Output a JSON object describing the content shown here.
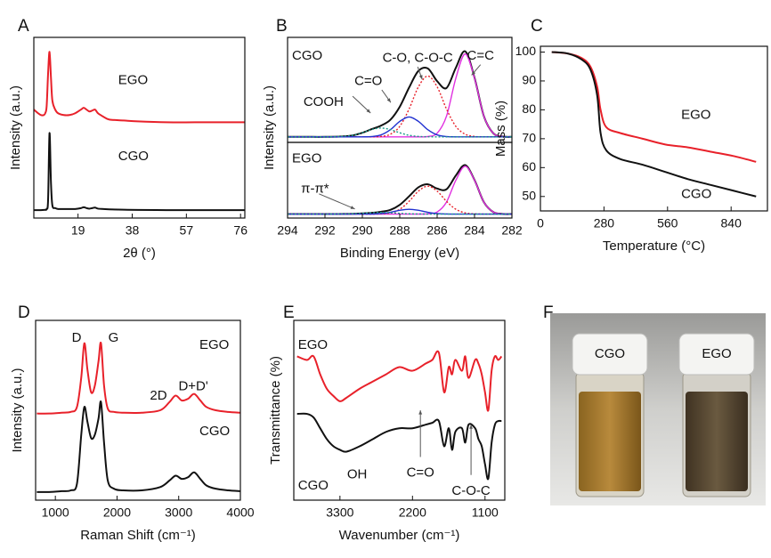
{
  "chart_data": [
    {
      "type": "line",
      "panel": "A",
      "xlabel": "2θ (°)",
      "ylabel": "Intensity (a.u.)",
      "xlim": [
        3.5,
        77.5
      ],
      "ylim": [
        0,
        100
      ],
      "xticks": [
        19,
        38,
        57,
        76
      ],
      "x": [
        3.5,
        5,
        6,
        7,
        7.5,
        8,
        8.5,
        9,
        9.5,
        10,
        11,
        12,
        14,
        16,
        18,
        20,
        21,
        22,
        23,
        24,
        25,
        26,
        28,
        30,
        35,
        40,
        50,
        60,
        70,
        77.5
      ],
      "series": [
        {
          "name": "EGO",
          "color": "#e8212a",
          "values": [
            60,
            58,
            57,
            57,
            58,
            62,
            80,
            92,
            78,
            65,
            60,
            58,
            57,
            57,
            58,
            60,
            61,
            60,
            59,
            59.5,
            60,
            58,
            56,
            54.5,
            54,
            53.5,
            53,
            53,
            53,
            53
          ]
        },
        {
          "name": "CGO",
          "color": "#111111",
          "values": [
            4.4,
            4.4,
            4.4,
            4.5,
            4.6,
            5,
            10,
            47,
            20,
            7,
            5.5,
            5,
            5,
            5,
            5,
            5.5,
            6,
            5.5,
            5.2,
            5.5,
            5.8,
            5.2,
            5,
            4.8,
            4.6,
            4.5,
            4.4,
            4.4,
            4.4,
            4.4
          ]
        }
      ]
    },
    {
      "type": "line",
      "panel": "B",
      "ylabel": "Intensity (a.u.)",
      "annotations": [
        "CGO"
      ],
      "xlim": [
        294,
        282
      ],
      "ylim": [
        -5,
        90
      ],
      "x": [
        294,
        293,
        292,
        291,
        290.5,
        290,
        289.5,
        289,
        288.5,
        288,
        287.5,
        287,
        286.5,
        286,
        285.5,
        285,
        284.5,
        284,
        283.5,
        283,
        282.5,
        282
      ],
      "series": [
        {
          "color": "#111111",
          "values": [
            0,
            0,
            0,
            0.4,
            1.4,
            3.7,
            7.0,
            10.2,
            15.5,
            27.2,
            44.6,
            59.7,
            61.9,
            50.4,
            44.2,
            62.5,
            77.4,
            53.4,
            18.7,
            3.3,
            0.3,
            0
          ]
        },
        {
          "name": "C=C",
          "color": "#e030e0",
          "values": [
            0,
            0,
            0,
            0,
            0,
            0,
            0,
            0,
            0,
            0,
            0,
            0,
            0.3,
            3.3,
            18.7,
            53,
            75,
            53,
            18.7,
            3.3,
            0.3,
            0
          ]
        },
        {
          "name": "C-O, C-O-C",
          "color": "#e8212a",
          "dash": true,
          "values": [
            0,
            0,
            0,
            0,
            0,
            0,
            0.05,
            0.4,
            2.4,
            9.5,
            25.2,
            45.3,
            55,
            45.3,
            25.2,
            9.5,
            2.4,
            0.4,
            0,
            0,
            0,
            0
          ]
        },
        {
          "name": "C=O",
          "color": "#2030d0",
          "values": [
            0,
            0,
            0,
            0,
            0,
            0,
            0.3,
            1.8,
            6.5,
            14,
            18,
            14,
            6.5,
            1.8,
            0.3,
            0,
            0,
            0,
            0,
            0,
            0,
            0
          ]
        },
        {
          "name": "COOH",
          "color": "#1a9a8a",
          "dash": true,
          "values": [
            0,
            0,
            0,
            0.4,
            1.4,
            3.7,
            6.6,
            8,
            6.6,
            3.7,
            1.4,
            0.4,
            0.1,
            0,
            0,
            0,
            0,
            0,
            0,
            0,
            0,
            0
          ]
        }
      ]
    },
    {
      "type": "line",
      "xlabel": "Binding Energy (eV)",
      "annotations": [
        "EGO",
        "π-π*"
      ],
      "xlim": [
        294,
        282
      ],
      "ylim": [
        -5,
        90
      ],
      "xticks": [
        294,
        292,
        290,
        288,
        286,
        284,
        282
      ],
      "x": [
        294,
        293,
        292,
        291,
        290.5,
        290,
        289.5,
        289,
        288.5,
        288,
        287.5,
        287,
        286.5,
        286,
        285.5,
        285,
        284.5,
        284,
        283.5,
        283,
        282.5,
        282
      ],
      "series": [
        {
          "color": "#111111",
          "values": [
            0,
            0,
            0,
            0.1,
            0.3,
            0.9,
            1.6,
            2.9,
            5.3,
            11.6,
            22.3,
            33.6,
            37.4,
            32,
            31.1,
            48.4,
            61.5,
            42.7,
            15,
            2.6,
            0.2,
            0
          ]
        },
        {
          "color": "#e030e0",
          "values": [
            0,
            0,
            0,
            0,
            0,
            0,
            0,
            0,
            0,
            0,
            0,
            0,
            0.2,
            2.6,
            15,
            42.4,
            60,
            42.4,
            15,
            2.6,
            0.2,
            0
          ]
        },
        {
          "color": "#e8212a",
          "dash": true,
          "values": [
            0,
            0,
            0,
            0,
            0,
            0,
            0,
            0.3,
            1.5,
            6,
            16,
            28.8,
            35,
            28.8,
            16,
            6,
            1.5,
            0.3,
            0,
            0,
            0,
            0
          ]
        },
        {
          "color": "#2030d0",
          "values": [
            0,
            0,
            0,
            0,
            0,
            0,
            0,
            0.6,
            2.2,
            4.7,
            6,
            4.7,
            2.2,
            0.6,
            0.1,
            0,
            0,
            0,
            0,
            0,
            0,
            0
          ]
        },
        {
          "color": "#1a9a8a",
          "dash": true,
          "values": [
            0,
            0,
            0,
            0.1,
            0.3,
            0.9,
            1.6,
            2,
            1.6,
            0.9,
            0.3,
            0.1,
            0,
            0,
            0,
            0,
            0,
            0,
            0,
            0,
            0,
            0
          ]
        }
      ]
    },
    {
      "type": "line",
      "panel": "C",
      "xlabel": "Temperature (°C)",
      "ylabel": "Mass (%)",
      "xlim": [
        0,
        1000
      ],
      "ylim": [
        45,
        102
      ],
      "xticks": [
        0,
        280,
        560,
        840
      ],
      "yticks": [
        50,
        60,
        70,
        80,
        90,
        100
      ],
      "x": [
        50,
        120,
        180,
        220,
        250,
        265,
        290,
        350,
        450,
        550,
        650,
        750,
        850,
        950
      ],
      "series": [
        {
          "name": "EGO",
          "color": "#e8212a",
          "values": [
            100,
            99.5,
            98,
            95,
            88,
            80,
            74,
            72,
            70,
            68,
            67,
            65.5,
            64,
            62
          ]
        },
        {
          "name": "CGO",
          "color": "#111111",
          "values": [
            100,
            99.5,
            97.5,
            94,
            85,
            72,
            66,
            63,
            61,
            58.5,
            56,
            54,
            52,
            50
          ]
        }
      ]
    },
    {
      "type": "line",
      "panel": "D",
      "xlabel": "Raman Shift (cm⁻¹)",
      "ylabel": "Intensity (a.u.)",
      "annotations": [
        "D",
        "G",
        "2D",
        "D+D'"
      ],
      "xlim": [
        680,
        4000
      ],
      "ylim": [
        0,
        110
      ],
      "xticks": [
        1000,
        2000,
        3000,
        4000
      ],
      "x": [
        700,
        900,
        1100,
        1250,
        1350,
        1420,
        1470,
        1520,
        1580,
        1640,
        1700,
        1740,
        1790,
        1850,
        1950,
        2100,
        2400,
        2700,
        2850,
        2950,
        3050,
        3150,
        3250,
        3350,
        3450,
        3600,
        3800,
        4000
      ],
      "series": [
        {
          "name": "EGO",
          "color": "#e8212a",
          "values": [
            53,
            53,
            53.5,
            54,
            57,
            75,
            96,
            80,
            66,
            70,
            85,
            96,
            70,
            56,
            54,
            53.5,
            53.5,
            55,
            60,
            64,
            61,
            62,
            65,
            61,
            57,
            55,
            54,
            53.5
          ]
        },
        {
          "name": "CGO",
          "color": "#111111",
          "values": [
            5,
            5,
            5.5,
            6,
            10,
            40,
            57,
            48,
            38,
            40,
            50,
            60,
            35,
            12,
            7,
            6,
            6,
            8,
            12,
            15,
            13,
            14,
            17,
            13,
            9,
            7,
            6,
            5.5
          ]
        }
      ]
    },
    {
      "type": "line",
      "panel": "E",
      "xlabel": "Wavenumber (cm⁻¹)",
      "ylabel": "Transmittance (%)",
      "annotations": [
        "OH",
        "C=O",
        "C-O-C"
      ],
      "xlim": [
        4000,
        800
      ],
      "ylim": [
        0,
        100
      ],
      "xticks": [
        3300,
        2200,
        1100
      ],
      "x": [
        3950,
        3800,
        3700,
        3600,
        3500,
        3400,
        3300,
        3200,
        3000,
        2800,
        2600,
        2400,
        2200,
        2000,
        1900,
        1800,
        1720,
        1650,
        1600,
        1550,
        1450,
        1400,
        1350,
        1250,
        1200,
        1150,
        1100,
        1050,
        1000,
        950,
        900,
        850
      ],
      "series": [
        {
          "name": "EGO",
          "color": "#e8212a",
          "values": [
            80,
            78,
            80,
            70,
            62,
            58,
            55,
            57,
            62,
            66,
            70,
            74,
            72,
            76,
            78,
            82,
            60,
            74,
            70,
            78,
            72,
            80,
            68,
            78,
            76,
            70,
            60,
            50,
            72,
            80,
            78,
            80
          ]
        },
        {
          "name": "CGO",
          "color": "#111111",
          "values": [
            48,
            48,
            46,
            40,
            34,
            30,
            28,
            27,
            30,
            34,
            38,
            40,
            40,
            42,
            43,
            44,
            30,
            40,
            28,
            38,
            40,
            32,
            42,
            40,
            34,
            30,
            20,
            12,
            32,
            42,
            44,
            44
          ]
        }
      ]
    }
  ],
  "photo": {
    "panel": "F",
    "labels": [
      "CGO",
      "EGO"
    ]
  }
}
